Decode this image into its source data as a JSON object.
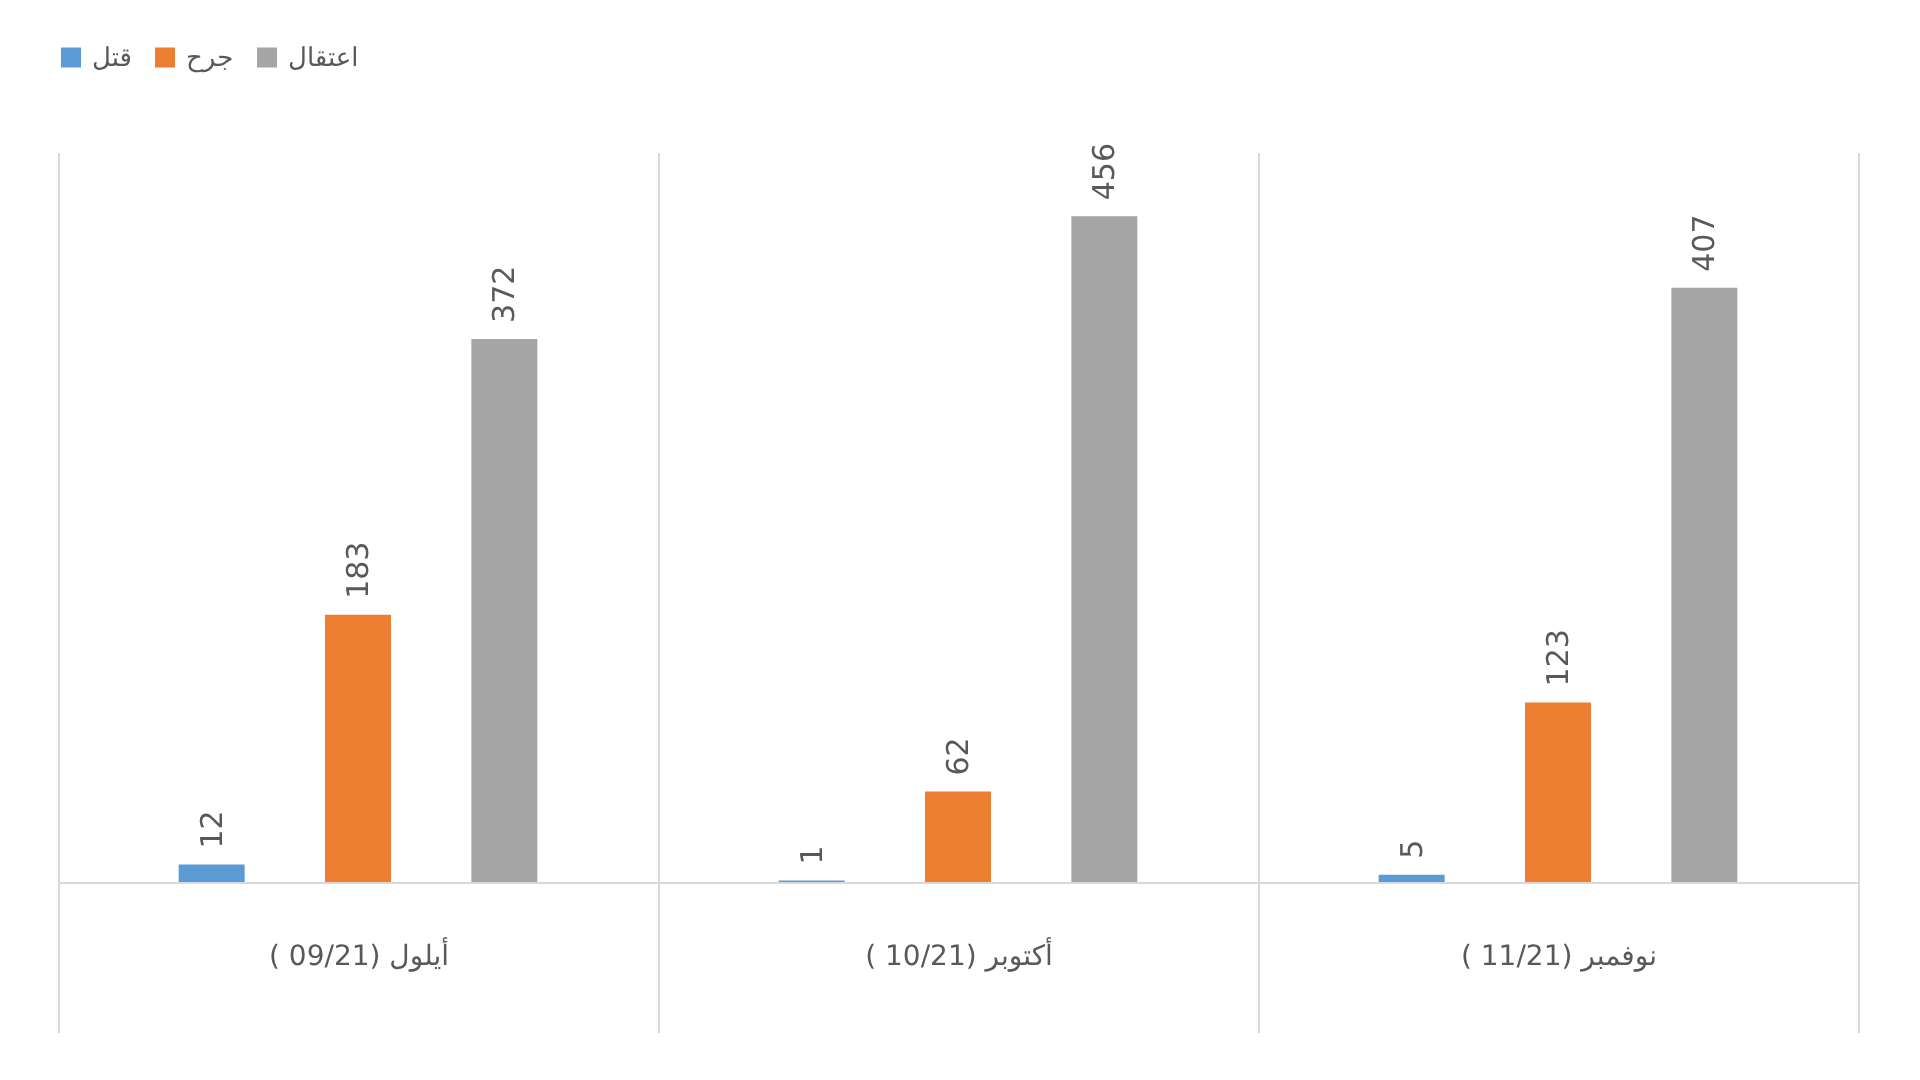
{
  "chart_data": {
    "type": "bar",
    "categories": [
      "( 09/21) أيلول",
      "( 10/21) أكتوبر",
      "( 11/21) نوفمبر"
    ],
    "series": [
      {
        "name": "قتل",
        "color": "#5b9bd5",
        "values": [
          12,
          1,
          5
        ]
      },
      {
        "name": "جرح",
        "color": "#ed7d31",
        "values": [
          183,
          62,
          123
        ]
      },
      {
        "name": "اعتقال",
        "color": "#a5a5a5",
        "values": [
          372,
          456,
          407
        ]
      }
    ],
    "data_labels": true,
    "legend": "top",
    "grid": "x"
  }
}
